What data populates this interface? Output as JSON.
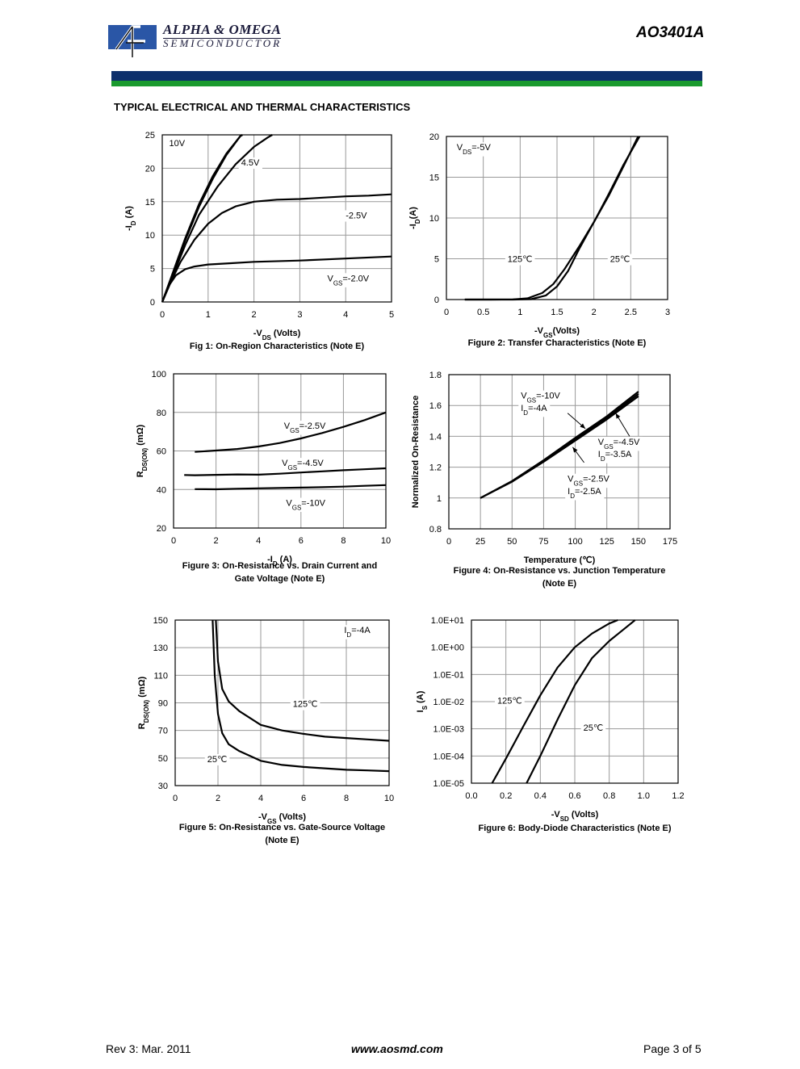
{
  "header": {
    "brand_line1": "ALPHA & OMEGA",
    "brand_line2": "SEMICONDUCTOR",
    "part_number": "AO3401A"
  },
  "section_title": "TYPICAL ELECTRICAL AND THERMAL CHARACTERISTICS",
  "footer": {
    "revision": "Rev 3: Mar. 2011",
    "website": "www.aosmd.com",
    "page": "Page 3 of 5"
  },
  "charts": [
    {
      "id": "fig1",
      "type": "line",
      "caption": [
        "Fig 1: On-Region Characteristics (Note E)"
      ],
      "xlabel": {
        "pre": "-V",
        "sub": "DS",
        "post": " (Volts)"
      },
      "ylabel": {
        "pre": "-I",
        "sub": "D",
        "post": " (A)"
      },
      "xlim": [
        0,
        5
      ],
      "ylim": [
        0,
        25
      ],
      "xticks": [
        0,
        1,
        2,
        3,
        4,
        5
      ],
      "yticks": [
        0,
        5,
        10,
        15,
        20,
        25
      ],
      "xtick_labels": [
        "0",
        "1",
        "2",
        "3",
        "4",
        "5"
      ],
      "ytick_labels": [
        "0",
        "5",
        "10",
        "15",
        "20",
        "25"
      ],
      "series": [
        {
          "name": "10V",
          "x": [
            0,
            0.2,
            0.5,
            0.8,
            1.1,
            1.4,
            1.7,
            1.75
          ],
          "y": [
            0,
            3.8,
            9.5,
            14.6,
            18.8,
            22.2,
            24.8,
            25
          ]
        },
        {
          "name": "",
          "x": [
            0,
            0.2,
            0.5,
            0.8,
            1.1,
            1.4,
            1.7,
            1.72
          ],
          "y": [
            0,
            3.7,
            9.2,
            14.2,
            18.4,
            22,
            24.8,
            25
          ]
        },
        {
          "name": "4.5V",
          "x": [
            0,
            0.2,
            0.5,
            0.8,
            1.2,
            1.6,
            2.0,
            2.3,
            2.4
          ],
          "y": [
            0,
            3.4,
            8.5,
            13,
            17.2,
            20.6,
            23.2,
            24.6,
            25
          ]
        },
        {
          "name": "-2.5V",
          "x": [
            0,
            0.2,
            0.4,
            0.7,
            1.0,
            1.3,
            1.6,
            2.0,
            2.5,
            3.0,
            3.5,
            4.0,
            4.5,
            5.0
          ],
          "y": [
            0,
            3.2,
            6,
            9.3,
            11.7,
            13.3,
            14.3,
            15,
            15.3,
            15.4,
            15.6,
            15.8,
            15.9,
            16.1
          ]
        },
        {
          "name": "VGS=-2.0V",
          "x": [
            0,
            0.15,
            0.3,
            0.5,
            0.7,
            1.0,
            1.5,
            2.0,
            3.0,
            4.0,
            5.0
          ],
          "y": [
            0,
            2.5,
            4,
            4.9,
            5.3,
            5.6,
            5.8,
            6,
            6.2,
            6.5,
            6.8
          ]
        }
      ],
      "annotations": [
        {
          "pre": "10V",
          "sub": "",
          "post": "",
          "x": 0.15,
          "y": 23.3
        },
        {
          "pre": "4.5V",
          "sub": "",
          "post": "",
          "x": 1.72,
          "y": 20.4
        },
        {
          "pre": "-2.5V",
          "sub": "",
          "post": "",
          "x": 4.0,
          "y": 12.5
        },
        {
          "pre": "V",
          "sub": "GS",
          "post": "=-2.0V",
          "x": 3.6,
          "y": 3.1
        }
      ]
    },
    {
      "id": "fig2",
      "type": "line",
      "caption": [
        "Figure 2: Transfer Characteristics (Note E)"
      ],
      "xlabel": {
        "pre": "-V",
        "sub": "GS",
        "post": "(Volts)"
      },
      "ylabel": {
        "pre": "-I",
        "sub": "D",
        "post": "(A)"
      },
      "xlim": [
        0,
        3
      ],
      "ylim": [
        0,
        20
      ],
      "xticks": [
        0,
        0.5,
        1,
        1.5,
        2,
        2.5,
        3
      ],
      "yticks": [
        0,
        5,
        10,
        15,
        20
      ],
      "xtick_labels": [
        "0",
        "0.5",
        "1",
        "1.5",
        "2",
        "2.5",
        "3"
      ],
      "ytick_labels": [
        "0",
        "5",
        "10",
        "15",
        "20"
      ],
      "series": [
        {
          "name": "125℃",
          "x": [
            0.25,
            0.6,
            0.9,
            1.1,
            1.3,
            1.45,
            1.6,
            1.8,
            2.0,
            2.2,
            2.4,
            2.6
          ],
          "y": [
            0,
            0,
            0.02,
            0.15,
            0.8,
            1.9,
            3.7,
            6.5,
            9.5,
            12.7,
            16.3,
            20
          ]
        },
        {
          "name": "25℃",
          "x": [
            0.25,
            0.6,
            0.9,
            1.15,
            1.35,
            1.5,
            1.65,
            1.8,
            2.0,
            2.2,
            2.4,
            2.62
          ],
          "y": [
            0,
            0,
            0,
            0.05,
            0.5,
            1.6,
            3.5,
            6.2,
            9.5,
            12.9,
            16.5,
            20
          ]
        }
      ],
      "annotations": [
        {
          "pre": "V",
          "sub": "DS",
          "post": "=-5V",
          "x": 0.14,
          "y": 18.3
        },
        {
          "pre": "125℃",
          "sub": "",
          "post": "",
          "x": 0.83,
          "y": 4.6
        },
        {
          "pre": "25℃",
          "sub": "",
          "post": "",
          "x": 2.22,
          "y": 4.6
        }
      ]
    },
    {
      "id": "fig3",
      "type": "line",
      "caption": [
        "Figure 3: On-Resistance vs. Drain Current and",
        "Gate Voltage (Note E)"
      ],
      "xlabel": {
        "pre": "-I",
        "sub": "D",
        "post": " (A)"
      },
      "ylabel": {
        "pre": "R",
        "sub": "DS(ON)",
        "post": " (mΩ)"
      },
      "xlim": [
        0,
        10
      ],
      "ylim": [
        20,
        100
      ],
      "xticks": [
        0,
        2,
        4,
        6,
        8,
        10
      ],
      "yticks": [
        20,
        40,
        60,
        80,
        100
      ],
      "xtick_labels": [
        "0",
        "2",
        "4",
        "6",
        "8",
        "10"
      ],
      "ytick_labels": [
        "20",
        "40",
        "60",
        "80",
        "100"
      ],
      "series": [
        {
          "name": "VGS=-2.5V",
          "x": [
            1,
            2,
            3,
            4,
            5,
            6,
            7,
            8,
            9,
            10
          ],
          "y": [
            59.5,
            60.2,
            61,
            62.3,
            64.1,
            66.5,
            69.3,
            72.5,
            76,
            80
          ]
        },
        {
          "name": "VGS=-4.5V",
          "x": [
            0.5,
            1,
            2,
            3,
            4,
            5,
            6,
            7,
            8,
            9,
            10
          ],
          "y": [
            47.5,
            47.4,
            47.6,
            47.8,
            47.7,
            48.2,
            48.8,
            49.4,
            50,
            50.5,
            51
          ]
        },
        {
          "name": "VGS=-10V",
          "x": [
            1,
            2,
            3,
            4,
            5,
            6,
            7,
            8,
            9,
            10
          ],
          "y": [
            40.2,
            40.1,
            40.4,
            40.6,
            40.8,
            41,
            41.2,
            41.5,
            41.9,
            42.3
          ]
        }
      ],
      "annotations": [
        {
          "pre": "V",
          "sub": "GS",
          "post": "=-2.5V",
          "x": 5.2,
          "y": 71.5
        },
        {
          "pre": "V",
          "sub": "GS",
          "post": "=-4.5V",
          "x": 5.1,
          "y": 52.2
        },
        {
          "pre": "V",
          "sub": "GS",
          "post": "=-10V",
          "x": 5.3,
          "y": 31.5
        }
      ]
    },
    {
      "id": "fig4",
      "type": "line",
      "caption": [
        "Figure 4: On-Resistance vs. Junction Temperature",
        "(Note E)"
      ],
      "xlabel": {
        "pre": "Temperature (℃)",
        "sub": "",
        "post": ""
      },
      "ylabel": {
        "pre": "Normalized On-Resistance",
        "sub": "",
        "post": ""
      },
      "xlim": [
        0,
        175
      ],
      "ylim": [
        0.8,
        1.8
      ],
      "xticks": [
        0,
        25,
        50,
        75,
        100,
        125,
        150,
        175
      ],
      "yticks": [
        0.8,
        1,
        1.2,
        1.4,
        1.6,
        1.8
      ],
      "xtick_labels": [
        "0",
        "25",
        "50",
        "75",
        "100",
        "125",
        "150",
        "175"
      ],
      "ytick_labels": [
        "0.8",
        "1",
        "1.2",
        "1.4",
        "1.6",
        "1.8"
      ],
      "series": [
        {
          "name": "VGS=-10V ID=-4A",
          "x": [
            25,
            50,
            75,
            100,
            125,
            150
          ],
          "y": [
            1.0,
            1.11,
            1.245,
            1.39,
            1.53,
            1.69
          ]
        },
        {
          "name": "VGS=-4.5V ID=-3.5A",
          "x": [
            25,
            50,
            75,
            100,
            125,
            150
          ],
          "y": [
            1.0,
            1.108,
            1.24,
            1.38,
            1.52,
            1.675
          ]
        },
        {
          "name": "VGS=-2.5V ID=-2.5A",
          "x": [
            25,
            50,
            75,
            100,
            125,
            150
          ],
          "y": [
            1.0,
            1.105,
            1.235,
            1.372,
            1.51,
            1.66
          ]
        }
      ],
      "annotations": [
        {
          "pre": "V",
          "sub": "GS",
          "post": "=-10V",
          "x": 57,
          "y": 1.645
        },
        {
          "pre": "I",
          "sub": "D",
          "post": "=-4A",
          "x": 57,
          "y": 1.565
        },
        {
          "pre": "V",
          "sub": "GS",
          "post": "=-4.5V",
          "x": 118,
          "y": 1.345
        },
        {
          "pre": "I",
          "sub": "D",
          "post": "=-3.5A",
          "x": 118,
          "y": 1.265
        },
        {
          "pre": "V",
          "sub": "GS",
          "post": "=-2.5V",
          "x": 94,
          "y": 1.105
        },
        {
          "pre": "I",
          "sub": "D",
          "post": "=-2.5A",
          "x": 94,
          "y": 1.025
        }
      ],
      "arrows": [
        {
          "x1": 94,
          "y1": 1.55,
          "x2": 108,
          "y2": 1.45
        },
        {
          "x1": 143,
          "y1": 1.4,
          "x2": 132,
          "y2": 1.55
        },
        {
          "x1": 107,
          "y1": 1.23,
          "x2": 98,
          "y2": 1.33
        }
      ]
    },
    {
      "id": "fig5",
      "type": "line",
      "caption": [
        "Figure 5: On-Resistance vs. Gate-Source Voltage",
        "(Note E)"
      ],
      "xlabel": {
        "pre": "-V",
        "sub": "GS",
        "post": " (Volts)"
      },
      "ylabel": {
        "pre": "R",
        "sub": "DS(ON)",
        "post": " (mΩ)"
      },
      "xlim": [
        0,
        10
      ],
      "ylim": [
        30,
        150
      ],
      "xticks": [
        0,
        2,
        4,
        6,
        8,
        10
      ],
      "yticks": [
        30,
        50,
        70,
        90,
        110,
        130,
        150
      ],
      "xtick_labels": [
        "0",
        "2",
        "4",
        "6",
        "8",
        "10"
      ],
      "ytick_labels": [
        "30",
        "50",
        "70",
        "90",
        "110",
        "130",
        "150"
      ],
      "series": [
        {
          "name": "125℃",
          "x": [
            1.9,
            2.0,
            2.2,
            2.5,
            3.0,
            4.0,
            5.0,
            6.0,
            7.0,
            8.0,
            9.0,
            10.0
          ],
          "y": [
            150,
            120,
            100,
            91,
            84,
            74,
            70,
            67.5,
            65.5,
            64.5,
            63.5,
            62.5
          ]
        },
        {
          "name": "25℃",
          "x": [
            1.75,
            1.85,
            2.0,
            2.2,
            2.5,
            3.0,
            4.0,
            5.0,
            6.0,
            7.0,
            8.0,
            9.0,
            10.0
          ],
          "y": [
            150,
            110,
            82,
            68,
            60,
            55,
            48,
            45,
            43.5,
            42.5,
            41.5,
            41,
            40.5
          ]
        }
      ],
      "annotations": [
        {
          "pre": "I",
          "sub": "D",
          "post": "=-4A",
          "x": 7.9,
          "y": 140.5
        },
        {
          "pre": "125℃",
          "sub": "",
          "post": "",
          "x": 5.5,
          "y": 87
        },
        {
          "pre": "25℃",
          "sub": "",
          "post": "",
          "x": 1.5,
          "y": 47
        }
      ]
    },
    {
      "id": "fig6",
      "type": "line",
      "log_y": true,
      "caption": [
        "Figure 6: Body-Diode Characteristics (Note E)"
      ],
      "xlabel": {
        "pre": "-V",
        "sub": "SD",
        "post": " (Volts)"
      },
      "ylabel": {
        "pre": "I",
        "sub": "S",
        "post": " (A)"
      },
      "xlim": [
        0,
        1.2
      ],
      "ylim": [
        1e-05,
        10
      ],
      "xticks": [
        0,
        0.2,
        0.4,
        0.6,
        0.8,
        1.0,
        1.2
      ],
      "yticks": [
        1e-05,
        0.0001,
        0.001,
        0.01,
        0.1,
        1,
        10
      ],
      "xtick_labels": [
        "0.0",
        "0.2",
        "0.4",
        "0.6",
        "0.8",
        "1.0",
        "1.2"
      ],
      "ytick_labels": [
        "1.0E-05",
        "1.0E-04",
        "1.0E-03",
        "1.0E-02",
        "1.0E-01",
        "1.0E+00",
        "1.0E+01"
      ],
      "series": [
        {
          "name": "125℃",
          "x": [
            0.12,
            0.2,
            0.3,
            0.4,
            0.5,
            0.6,
            0.7,
            0.8,
            0.85
          ],
          "y": [
            1e-05,
            8e-05,
            0.0012,
            0.017,
            0.18,
            1.0,
            3.2,
            7.5,
            10
          ]
        },
        {
          "name": "25℃",
          "x": [
            0.32,
            0.4,
            0.5,
            0.6,
            0.7,
            0.8,
            0.9,
            0.95
          ],
          "y": [
            1e-05,
            0.0001,
            0.0022,
            0.04,
            0.4,
            1.7,
            5.5,
            10
          ]
        }
      ],
      "annotations": [
        {
          "pre": "125℃",
          "sub": "",
          "post": "",
          "x": 0.15,
          "y": 0.0085
        },
        {
          "pre": "25℃",
          "sub": "",
          "post": "",
          "x": 0.65,
          "y": 0.00085
        }
      ]
    }
  ]
}
